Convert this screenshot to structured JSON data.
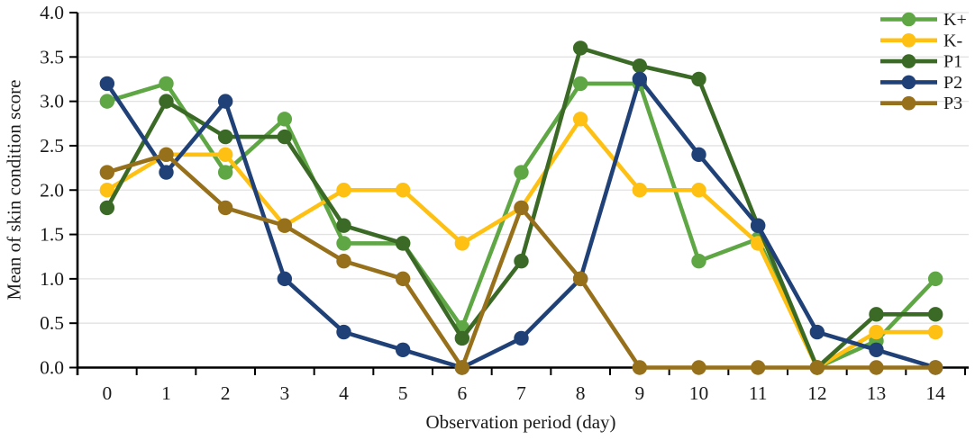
{
  "figure": {
    "x_axis_title": "Observation period (day)",
    "y_axis_title": "Mean of skin condition score"
  },
  "chart_data": {
    "type": "line",
    "title": "",
    "xlabel": "Observation period (day)",
    "ylabel": "Mean of skin condition score",
    "categories": [
      0,
      1,
      2,
      3,
      4,
      5,
      6,
      7,
      8,
      9,
      10,
      11,
      12,
      13,
      14
    ],
    "x_tick_labels": [
      "0",
      "1",
      "2",
      "3",
      "4",
      "5",
      "6",
      "7",
      "8",
      "9",
      "10",
      "11",
      "12",
      "13",
      "14"
    ],
    "y_tick_labels": [
      "0.0",
      "0.5",
      "1.0",
      "1.5",
      "2.0",
      "2.5",
      "3.0",
      "3.5",
      "4.0"
    ],
    "ylim": [
      0,
      4.0
    ],
    "ytick_step": 0.5,
    "grid": true,
    "gridline_color": "#e2e2e2",
    "axis_color": "#000000",
    "legend_position": "top-right",
    "series": [
      {
        "name": "K+",
        "color": "#5fa645",
        "values": [
          3.0,
          3.2,
          2.2,
          2.8,
          1.4,
          1.4,
          0.45,
          2.2,
          3.2,
          3.2,
          1.2,
          1.45,
          0.0,
          0.3,
          1.0
        ]
      },
      {
        "name": "K-",
        "color": "#fdc013",
        "values": [
          2.0,
          2.4,
          2.4,
          1.6,
          2.0,
          2.0,
          1.4,
          1.8,
          2.8,
          2.0,
          2.0,
          1.4,
          0.0,
          0.4,
          0.4
        ]
      },
      {
        "name": "P1",
        "color": "#3a6a25",
        "values": [
          1.8,
          3.0,
          2.6,
          2.6,
          1.6,
          1.4,
          0.33,
          1.2,
          3.6,
          3.4,
          3.25,
          1.6,
          0.0,
          0.6,
          0.6
        ]
      },
      {
        "name": "P2",
        "color": "#1f4177",
        "values": [
          3.2,
          2.2,
          3.0,
          1.0,
          0.4,
          0.2,
          0.0,
          0.33,
          1.0,
          3.25,
          2.4,
          1.6,
          0.4,
          0.2,
          0.0
        ]
      },
      {
        "name": "P3",
        "color": "#97701c",
        "values": [
          2.2,
          2.4,
          1.8,
          1.6,
          1.2,
          1.0,
          0.0,
          1.8,
          1.0,
          0.0,
          0.0,
          0.0,
          0.0,
          0.0,
          0.0
        ]
      }
    ]
  }
}
